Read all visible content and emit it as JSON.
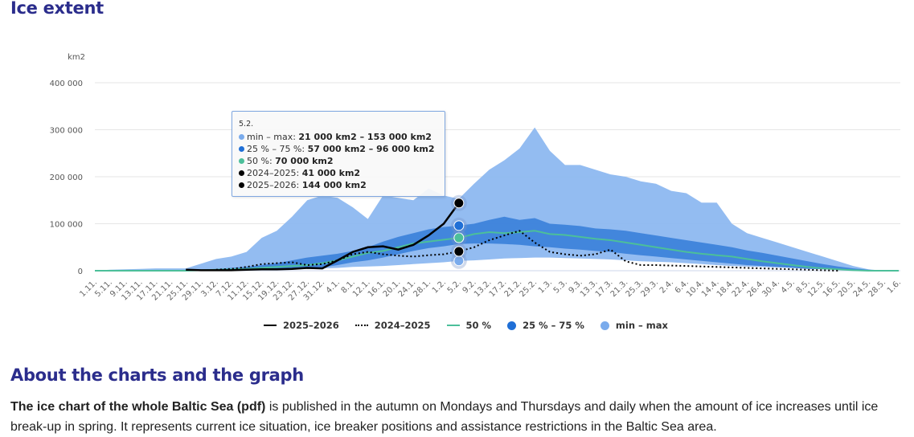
{
  "page": {
    "title": "Ice extent",
    "section2_title": "About the charts and the graph",
    "paragraph": {
      "bold_lead": "The ice chart of the whole Baltic Sea (pdf)",
      "rest": " is published in the autumn on Mondays and Thursdays and daily when the amount of ice increases until ice break-up in spring. It represents current ice situation, ice breaker positions and assistance restrictions in the Baltic Sea area."
    }
  },
  "colors": {
    "title": "#2b2d8c",
    "min_max": "#8db8f0",
    "p25_75": "#3a7fd9",
    "p50": "#4cbf9a",
    "season_current": "#000000",
    "season_previous": "#000000",
    "grid": "#e0e0e0"
  },
  "tooltip": {
    "date": "5.2.",
    "rows": [
      {
        "label": "min – max: ",
        "value": "21 000 km2 – 153 000 km2",
        "color": "#7aabec"
      },
      {
        "label": "25 % – 75 %: ",
        "value": "57 000 km2 – 96 000 km2",
        "color": "#1f6fd6"
      },
      {
        "label": "50 %: ",
        "value": "70 000 km2",
        "color": "#4cbf9a"
      },
      {
        "label": "2024–2025: ",
        "value": "41 000 km2",
        "color": "#000000"
      },
      {
        "label": "2025–2026: ",
        "value": "144 000 km2",
        "color": "#000000"
      }
    ]
  },
  "chart_data": {
    "type": "area",
    "title": "Ice extent",
    "ylabel": "km2",
    "xlabel": "",
    "ylim": [
      0,
      400000
    ],
    "yticks": [
      0,
      100000,
      200000,
      300000,
      400000
    ],
    "ytick_labels": [
      "0",
      "100 000",
      "200 000",
      "300 000",
      "400 000"
    ],
    "grid": true,
    "legend_position": "bottom-center",
    "categories": [
      "1.11.",
      "5.11.",
      "9.11.",
      "13.11.",
      "17.11.",
      "21.11.",
      "25.11.",
      "29.11.",
      "3.12.",
      "7.12.",
      "11.12.",
      "15.12.",
      "19.12.",
      "23.12.",
      "27.12.",
      "31.12.",
      "4.1.",
      "8.1.",
      "12.1.",
      "16.1.",
      "20.1.",
      "24.1.",
      "28.1.",
      "1.2.",
      "5.2.",
      "9.2.",
      "13.2.",
      "17.2.",
      "21.2.",
      "25.2.",
      "1.3.",
      "5.3.",
      "9.3.",
      "13.3.",
      "17.3.",
      "21.3.",
      "25.3.",
      "29.3.",
      "2.4.",
      "6.4.",
      "10.4.",
      "14.4.",
      "18.4.",
      "22.4.",
      "26.4.",
      "30.4.",
      "4.5.",
      "8.5.",
      "12.5.",
      "16.5.",
      "20.5.",
      "24.5.",
      "28.5.",
      "1.6."
    ],
    "series": [
      {
        "name": "min – max",
        "kind": "range",
        "low": [
          0,
          0,
          0,
          0,
          0,
          0,
          0,
          0,
          0,
          0,
          1000,
          2000,
          2000,
          3000,
          4000,
          5000,
          6000,
          8000,
          9000,
          10000,
          12000,
          14000,
          16000,
          18000,
          21000,
          22000,
          24000,
          26000,
          27000,
          28000,
          28000,
          27000,
          26000,
          25000,
          24000,
          22000,
          20000,
          19000,
          18000,
          16000,
          14000,
          12000,
          10000,
          9000,
          8000,
          7000,
          6000,
          5000,
          4000,
          3000,
          2000,
          1000,
          0,
          0
        ],
        "high": [
          0,
          2000,
          3000,
          4000,
          5000,
          5000,
          5000,
          15000,
          25000,
          30000,
          40000,
          70000,
          85000,
          115000,
          150000,
          160000,
          155000,
          135000,
          110000,
          160000,
          155000,
          150000,
          175000,
          160000,
          153000,
          185000,
          215000,
          235000,
          260000,
          305000,
          255000,
          225000,
          225000,
          215000,
          205000,
          200000,
          190000,
          185000,
          170000,
          165000,
          145000,
          145000,
          100000,
          80000,
          70000,
          60000,
          50000,
          40000,
          30000,
          20000,
          10000,
          3000,
          0,
          0
        ]
      },
      {
        "name": "25 % – 75 %",
        "kind": "range",
        "low": [
          0,
          0,
          0,
          0,
          0,
          0,
          0,
          0,
          0,
          0,
          1000,
          2000,
          3000,
          4000,
          5000,
          7000,
          12000,
          18000,
          22000,
          28000,
          35000,
          42000,
          48000,
          52000,
          57000,
          58000,
          58000,
          57000,
          55000,
          52000,
          50000,
          47000,
          45000,
          42000,
          40000,
          36000,
          33000,
          30000,
          27000,
          24000,
          21000,
          18000,
          15000,
          12000,
          10000,
          8000,
          6000,
          4000,
          3000,
          2000,
          1000,
          0,
          0,
          0
        ],
        "high": [
          0,
          0,
          0,
          0,
          0,
          0,
          0,
          2000,
          4000,
          6000,
          8000,
          12000,
          16000,
          22000,
          28000,
          32000,
          36000,
          42000,
          50000,
          62000,
          72000,
          80000,
          88000,
          93000,
          96000,
          100000,
          108000,
          115000,
          108000,
          112000,
          100000,
          98000,
          95000,
          90000,
          88000,
          85000,
          80000,
          75000,
          70000,
          65000,
          60000,
          55000,
          50000,
          43000,
          38000,
          32000,
          26000,
          20000,
          14000,
          9000,
          5000,
          2000,
          0,
          0
        ]
      },
      {
        "name": "50 %",
        "kind": "line",
        "values": [
          0,
          0,
          0,
          0,
          0,
          0,
          0,
          1000,
          2000,
          3000,
          4000,
          6000,
          8000,
          10000,
          12000,
          16000,
          22000,
          30000,
          38000,
          42000,
          50000,
          58000,
          62000,
          66000,
          70000,
          78000,
          82000,
          80000,
          82000,
          85000,
          78000,
          76000,
          72000,
          68000,
          65000,
          60000,
          55000,
          50000,
          45000,
          40000,
          36000,
          33000,
          30000,
          25000,
          20000,
          16000,
          12000,
          8000,
          5000,
          3000,
          1000,
          0,
          0,
          0
        ]
      },
      {
        "name": "2024–2025",
        "kind": "line",
        "style": "dotted",
        "values": [
          null,
          null,
          null,
          null,
          null,
          null,
          null,
          null,
          2000,
          4000,
          8000,
          14000,
          16000,
          18000,
          12000,
          14000,
          22000,
          35000,
          40000,
          35000,
          32000,
          30000,
          33000,
          35000,
          41000,
          50000,
          65000,
          75000,
          85000,
          60000,
          40000,
          35000,
          32000,
          35000,
          45000,
          20000,
          12000,
          12000,
          11000,
          10000,
          9000,
          8000,
          7000,
          6000,
          5000,
          4000,
          3000,
          2000,
          1000,
          0,
          null,
          null,
          null,
          null
        ]
      },
      {
        "name": "2025–2026",
        "kind": "line",
        "style": "solid",
        "values": [
          null,
          null,
          null,
          null,
          null,
          null,
          2000,
          1000,
          1000,
          1000,
          2000,
          3000,
          3000,
          4000,
          6000,
          5000,
          22000,
          40000,
          50000,
          52000,
          45000,
          55000,
          75000,
          100000,
          144000,
          null,
          null,
          null,
          null,
          null,
          null,
          null,
          null,
          null,
          null,
          null,
          null,
          null,
          null,
          null,
          null,
          null,
          null,
          null,
          null,
          null,
          null,
          null,
          null,
          null,
          null,
          null,
          null,
          null
        ]
      }
    ],
    "highlight_category": "5.2."
  },
  "legend": [
    {
      "label": "2025–2026",
      "symbol": "line"
    },
    {
      "label": "2024–2025",
      "symbol": "dotted-line"
    },
    {
      "label": "50 %",
      "symbol": "green-line"
    },
    {
      "label": "25 % – 75 %",
      "symbol": "circle",
      "color": "#1f6fd6"
    },
    {
      "label": "min – max",
      "symbol": "circle",
      "color": "#7aabec"
    }
  ]
}
